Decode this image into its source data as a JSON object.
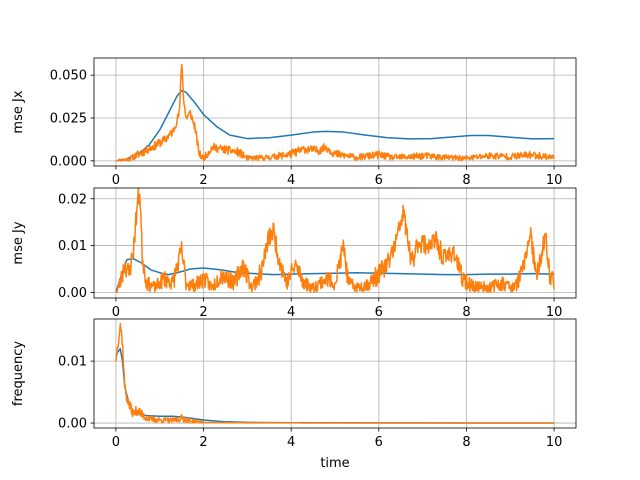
{
  "chart_data": [
    {
      "type": "line",
      "xlabel": "",
      "ylabel": "mse Jx",
      "xlim": [
        -0.5,
        10.5
      ],
      "ylim": [
        -0.003,
        0.06
      ],
      "xticks": [
        0,
        2,
        4,
        6,
        8,
        10
      ],
      "xtick_labels": [
        "0",
        "2",
        "4",
        "6",
        "8",
        "10"
      ],
      "yticks": [
        0.0,
        0.025,
        0.05
      ],
      "ytick_labels": [
        "0.000",
        "0.025",
        "0.050"
      ],
      "grid": true,
      "series": [
        {
          "color": "#1f77b4",
          "style": "smooth",
          "points": [
            [
              0,
              0
            ],
            [
              0.25,
              0.0012
            ],
            [
              0.5,
              0.004
            ],
            [
              0.75,
              0.009
            ],
            [
              1.0,
              0.018
            ],
            [
              1.2,
              0.028
            ],
            [
              1.4,
              0.038
            ],
            [
              1.5,
              0.041
            ],
            [
              1.6,
              0.04
            ],
            [
              1.8,
              0.034
            ],
            [
              2.0,
              0.027
            ],
            [
              2.3,
              0.02
            ],
            [
              2.6,
              0.015
            ],
            [
              3.0,
              0.013
            ],
            [
              3.5,
              0.0135
            ],
            [
              4.0,
              0.015
            ],
            [
              4.5,
              0.0168
            ],
            [
              4.8,
              0.0172
            ],
            [
              5.2,
              0.0168
            ],
            [
              5.7,
              0.015
            ],
            [
              6.2,
              0.0135
            ],
            [
              6.7,
              0.0128
            ],
            [
              7.2,
              0.013
            ],
            [
              7.7,
              0.014
            ],
            [
              8.1,
              0.0148
            ],
            [
              8.5,
              0.0148
            ],
            [
              9.0,
              0.0138
            ],
            [
              9.5,
              0.0128
            ],
            [
              10,
              0.013
            ]
          ]
        },
        {
          "color": "#ff7f0e",
          "style": "noisy",
          "points": [
            [
              0,
              0
            ],
            [
              0.3,
              0.001
            ],
            [
              0.6,
              0.005
            ],
            [
              0.9,
              0.009
            ],
            [
              1.1,
              0.012
            ],
            [
              1.3,
              0.017
            ],
            [
              1.45,
              0.028
            ],
            [
              1.5,
              0.058
            ],
            [
              1.55,
              0.035
            ],
            [
              1.6,
              0.025
            ],
            [
              1.7,
              0.028
            ],
            [
              1.8,
              0.02
            ],
            [
              1.9,
              0.004
            ],
            [
              2.0,
              0.0015
            ],
            [
              2.2,
              0.008
            ],
            [
              2.4,
              0.007
            ],
            [
              2.6,
              0.006
            ],
            [
              2.8,
              0.005
            ],
            [
              3.0,
              0.0015
            ],
            [
              3.5,
              0.002
            ],
            [
              4.0,
              0.004
            ],
            [
              4.3,
              0.007
            ],
            [
              4.6,
              0.006
            ],
            [
              4.8,
              0.008
            ],
            [
              5.0,
              0.004
            ],
            [
              5.5,
              0.002
            ],
            [
              6.0,
              0.0035
            ],
            [
              6.3,
              0.002
            ],
            [
              6.8,
              0.0025
            ],
            [
              7.0,
              0.003
            ],
            [
              7.5,
              0.002
            ],
            [
              8.0,
              0.0015
            ],
            [
              8.5,
              0.003
            ],
            [
              9.0,
              0.0025
            ],
            [
              9.5,
              0.0035
            ],
            [
              10,
              0.002
            ]
          ],
          "noise_amp": 0.0025,
          "noise_seed": 11
        }
      ]
    },
    {
      "type": "line",
      "xlabel": "",
      "ylabel": "mse Jy",
      "xlim": [
        -0.5,
        10.5
      ],
      "ylim": [
        -0.0012,
        0.0223
      ],
      "xticks": [
        0,
        2,
        4,
        6,
        8,
        10
      ],
      "xtick_labels": [
        "0",
        "2",
        "4",
        "6",
        "8",
        "10"
      ],
      "yticks": [
        0.0,
        0.01,
        0.02
      ],
      "ytick_labels": [
        "0.00",
        "0.01",
        "0.02"
      ],
      "grid": true,
      "series": [
        {
          "color": "#1f77b4",
          "style": "smooth",
          "points": [
            [
              0,
              0
            ],
            [
              0.1,
              0.003
            ],
            [
              0.25,
              0.007
            ],
            [
              0.4,
              0.0072
            ],
            [
              0.6,
              0.0062
            ],
            [
              0.8,
              0.0048
            ],
            [
              1.0,
              0.0042
            ],
            [
              1.2,
              0.0038
            ],
            [
              1.4,
              0.0042
            ],
            [
              1.7,
              0.005
            ],
            [
              2.0,
              0.0052
            ],
            [
              2.4,
              0.0048
            ],
            [
              2.8,
              0.0042
            ],
            [
              3.2,
              0.004
            ],
            [
              3.6,
              0.0038
            ],
            [
              4.0,
              0.0039
            ],
            [
              4.5,
              0.004
            ],
            [
              5.0,
              0.0041
            ],
            [
              5.5,
              0.0042
            ],
            [
              6.0,
              0.0041
            ],
            [
              6.5,
              0.004
            ],
            [
              7.0,
              0.0039
            ],
            [
              7.5,
              0.0038
            ],
            [
              8.0,
              0.0038
            ],
            [
              8.5,
              0.0039
            ],
            [
              9.0,
              0.0039
            ],
            [
              9.5,
              0.004
            ],
            [
              10,
              0.0039
            ]
          ]
        },
        {
          "color": "#ff7f0e",
          "style": "noisy",
          "points": [
            [
              0,
              0
            ],
            [
              0.1,
              0.002
            ],
            [
              0.2,
              0.006
            ],
            [
              0.3,
              0.004
            ],
            [
              0.4,
              0.009
            ],
            [
              0.5,
              0.02
            ],
            [
              0.55,
              0.021
            ],
            [
              0.6,
              0.008
            ],
            [
              0.7,
              0.002
            ],
            [
              0.9,
              0.001
            ],
            [
              1.1,
              0.003
            ],
            [
              1.3,
              0.002
            ],
            [
              1.5,
              0.009
            ],
            [
              1.6,
              0.002
            ],
            [
              1.8,
              0.0015
            ],
            [
              2.0,
              0.003
            ],
            [
              2.2,
              0.001
            ],
            [
              2.4,
              0.004
            ],
            [
              2.7,
              0.002
            ],
            [
              2.9,
              0.006
            ],
            [
              3.1,
              0.001
            ],
            [
              3.3,
              0.004
            ],
            [
              3.5,
              0.012
            ],
            [
              3.6,
              0.013
            ],
            [
              3.7,
              0.008
            ],
            [
              3.9,
              0.002
            ],
            [
              4.1,
              0.006
            ],
            [
              4.3,
              0.002
            ],
            [
              4.5,
              0.001
            ],
            [
              4.8,
              0.003
            ],
            [
              5.0,
              0.002
            ],
            [
              5.2,
              0.01
            ],
            [
              5.3,
              0.002
            ],
            [
              5.5,
              0.001
            ],
            [
              5.8,
              0.002
            ],
            [
              6.0,
              0.004
            ],
            [
              6.2,
              0.006
            ],
            [
              6.4,
              0.011
            ],
            [
              6.55,
              0.017
            ],
            [
              6.6,
              0.015
            ],
            [
              6.75,
              0.006
            ],
            [
              6.9,
              0.011
            ],
            [
              7.1,
              0.01
            ],
            [
              7.3,
              0.011
            ],
            [
              7.5,
              0.007
            ],
            [
              7.7,
              0.009
            ],
            [
              7.9,
              0.003
            ],
            [
              8.1,
              0.0015
            ],
            [
              8.5,
              0.001
            ],
            [
              8.8,
              0.002
            ],
            [
              9.1,
              0.001
            ],
            [
              9.3,
              0.005
            ],
            [
              9.45,
              0.013
            ],
            [
              9.6,
              0.003
            ],
            [
              9.8,
              0.012
            ],
            [
              9.9,
              0.004
            ],
            [
              10,
              0.002
            ]
          ],
          "noise_amp": 0.0022,
          "noise_seed": 23
        }
      ]
    },
    {
      "type": "line",
      "xlabel": "time",
      "ylabel": "frequency",
      "xlim": [
        -0.5,
        10.5
      ],
      "ylim": [
        -0.0008,
        0.0168
      ],
      "xticks": [
        0,
        2,
        4,
        6,
        8,
        10
      ],
      "xtick_labels": [
        "0",
        "2",
        "4",
        "6",
        "8",
        "10"
      ],
      "yticks": [
        0.0,
        0.01
      ],
      "ytick_labels": [
        "0.00",
        "0.01"
      ],
      "grid": true,
      "series": [
        {
          "color": "#1f77b4",
          "style": "smooth",
          "points": [
            [
              0,
              0.011
            ],
            [
              0.05,
              0.0115
            ],
            [
              0.1,
              0.012
            ],
            [
              0.15,
              0.01
            ],
            [
              0.2,
              0.006
            ],
            [
              0.3,
              0.003
            ],
            [
              0.4,
              0.0018
            ],
            [
              0.5,
              0.0014
            ],
            [
              0.7,
              0.0012
            ],
            [
              1.0,
              0.0011
            ],
            [
              1.3,
              0.0011
            ],
            [
              1.6,
              0.0009
            ],
            [
              2.0,
              0.0005
            ],
            [
              2.5,
              0.0002
            ],
            [
              3.0,
              0.0001
            ],
            [
              4.0,
              5e-05
            ],
            [
              6.0,
              2e-05
            ],
            [
              8.0,
              1e-05
            ],
            [
              10,
              1e-05
            ]
          ]
        },
        {
          "color": "#ff7f0e",
          "style": "noisy",
          "points": [
            [
              0,
              0.01
            ],
            [
              0.05,
              0.013
            ],
            [
              0.1,
              0.016
            ],
            [
              0.15,
              0.013
            ],
            [
              0.2,
              0.006
            ],
            [
              0.25,
              0.004
            ],
            [
              0.3,
              0.003
            ],
            [
              0.4,
              0.0015
            ],
            [
              0.5,
              0.0022
            ],
            [
              0.6,
              0.0012
            ],
            [
              0.8,
              0.0006
            ],
            [
              1.0,
              0.0005
            ],
            [
              1.3,
              0.0004
            ],
            [
              1.5,
              0.0008
            ],
            [
              1.7,
              0.0003
            ],
            [
              2.0,
              0.0001
            ],
            [
              3.0,
              3e-05
            ],
            [
              5.0,
              1e-05
            ],
            [
              10,
              1e-05
            ]
          ],
          "noise_amp": 0.0008,
          "noise_cut": 2.0,
          "noise_seed": 37
        }
      ]
    }
  ]
}
